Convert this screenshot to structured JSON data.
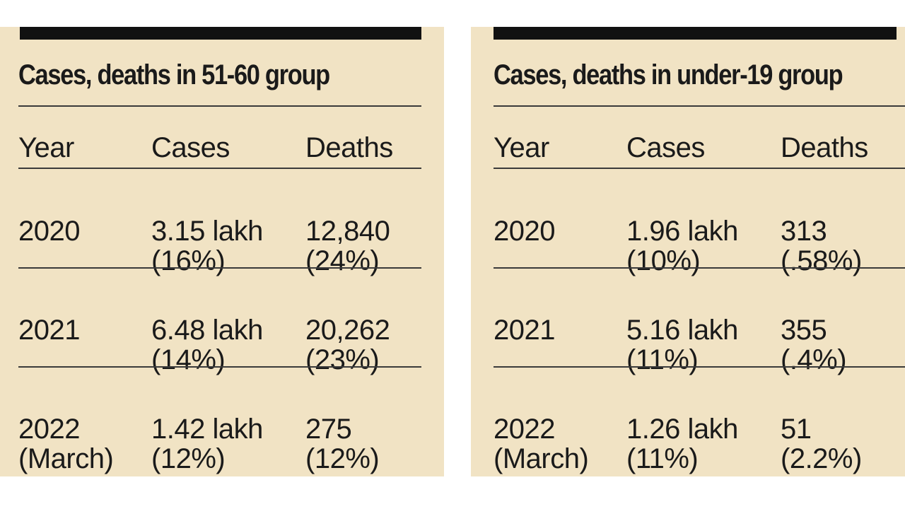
{
  "tables": [
    {
      "title": "Cases, deaths in 51-60 group",
      "headers": [
        "Year",
        "Cases",
        "Deaths"
      ],
      "rows": [
        {
          "year": [
            "2020",
            ""
          ],
          "cases": [
            "3.15 lakh",
            "(16%)"
          ],
          "deaths": [
            "12,840",
            "(24%)"
          ]
        },
        {
          "year": [
            "2021",
            ""
          ],
          "cases": [
            "6.48 lakh",
            "(14%)"
          ],
          "deaths": [
            "20,262",
            "(23%)"
          ]
        },
        {
          "year": [
            "2022",
            "(March)"
          ],
          "cases": [
            "1.42 lakh",
            "(12%)"
          ],
          "deaths": [
            "275",
            "(12%)"
          ]
        }
      ]
    },
    {
      "title": "Cases, deaths in under-19 group",
      "headers": [
        "Year",
        "Cases",
        "Deaths"
      ],
      "rows": [
        {
          "year": [
            "2020",
            ""
          ],
          "cases": [
            "1.96 lakh",
            "(10%)"
          ],
          "deaths": [
            "313",
            "(.58%)"
          ]
        },
        {
          "year": [
            "2021",
            ""
          ],
          "cases": [
            "5.16 lakh",
            "(11%)"
          ],
          "deaths": [
            "355",
            "(.4%)"
          ]
        },
        {
          "year": [
            "2022",
            "(March)"
          ],
          "cases": [
            "1.26 lakh",
            "(11%)"
          ],
          "deaths": [
            "51",
            "(2.2%)"
          ]
        }
      ]
    }
  ],
  "colors": {
    "panel_background": "#f1e3c4",
    "bar": "#111111",
    "text": "#1a1a1a"
  }
}
